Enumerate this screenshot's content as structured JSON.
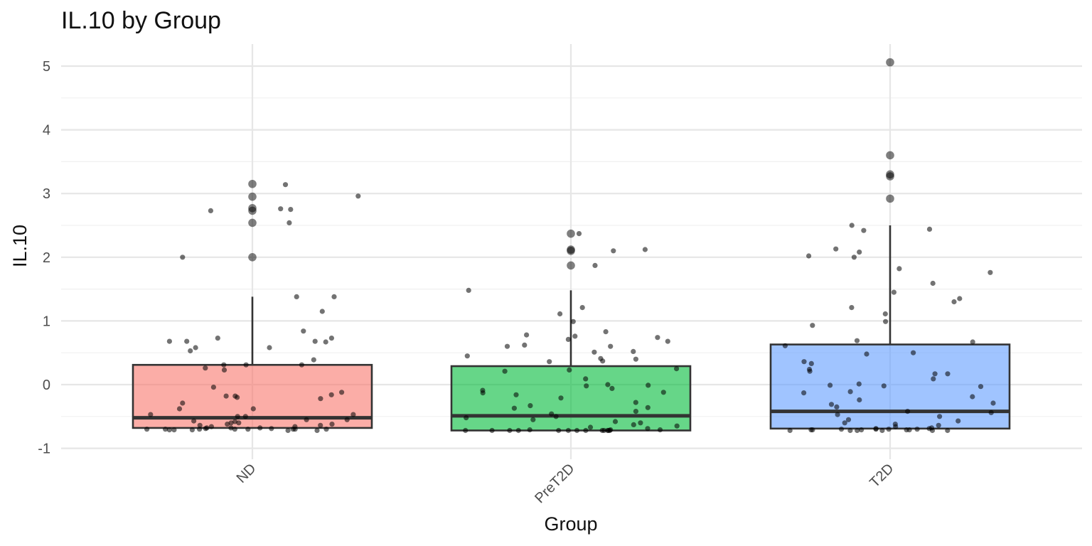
{
  "chart_data": {
    "type": "boxplot",
    "title": "IL.10 by Group",
    "xlabel": "Group",
    "ylabel": "IL.10",
    "categories": [
      "ND",
      "PreT2D",
      "T2D"
    ],
    "ylim": [
      -1.1,
      5.35
    ],
    "yticks": [
      -1,
      0,
      1,
      2,
      3,
      4,
      5
    ],
    "grid": true,
    "legend": "none",
    "colors": [
      "#F8766D",
      "#00BA38",
      "#619CFF"
    ],
    "boxes": [
      {
        "group": "ND",
        "lower": -0.68,
        "q1": -0.68,
        "median": -0.52,
        "q3": 0.31,
        "upper": 1.38
      },
      {
        "group": "PreT2D",
        "lower": -0.72,
        "q1": -0.72,
        "median": -0.49,
        "q3": 0.29,
        "upper": 1.48
      },
      {
        "group": "T2D",
        "lower": -0.69,
        "q1": -0.69,
        "median": -0.42,
        "q3": 0.63,
        "upper": 2.5
      }
    ],
    "outliers": [
      {
        "group": "ND",
        "values": [
          3.15,
          2.95,
          2.77,
          2.73,
          2.54,
          2.0
        ]
      },
      {
        "group": "PreT2D",
        "values": [
          2.37,
          2.12,
          2.1,
          1.87
        ]
      },
      {
        "group": "T2D",
        "values": [
          5.06,
          3.6,
          3.3,
          3.27,
          2.92
        ]
      }
    ],
    "points": [
      {
        "group": "ND",
        "values": [
          3.14,
          2.73,
          2.76,
          2.96,
          2.75,
          2.54,
          2.0,
          1.38,
          1.38,
          1.15,
          0.84,
          0.73,
          0.68,
          0.68,
          0.58,
          0.58,
          0.53,
          0.39,
          0.73,
          0.67,
          0.68,
          0.31,
          0.31,
          0.31,
          0.26,
          0.23,
          -0.12,
          -0.16,
          -0.18,
          -0.2,
          -0.22,
          -0.29,
          -0.38,
          -0.04,
          -0.18,
          -0.38,
          -0.47,
          -0.5,
          -0.55,
          -0.57,
          -0.6,
          -0.62,
          -0.64,
          -0.66,
          -0.68,
          -0.7,
          -0.7,
          -0.71,
          -0.69,
          -0.7,
          -0.7,
          -0.68,
          -0.66,
          -0.64,
          -0.62,
          -0.6,
          -0.58,
          -0.55,
          -0.5,
          -0.47,
          -0.7,
          -0.71,
          -0.72,
          -0.7,
          -0.68,
          -0.69,
          -0.7,
          -0.71,
          -0.72,
          -0.7
        ]
      },
      {
        "group": "PreT2D",
        "values": [
          2.37,
          2.12,
          1.87,
          2.1,
          1.48,
          1.21,
          1.11,
          0.99,
          0.83,
          0.78,
          0.71,
          0.68,
          0.6,
          0.76,
          0.74,
          0.51,
          0.45,
          0.41,
          0.37,
          0.36,
          0.4,
          0.6,
          0.62,
          0.52,
          0.25,
          0.23,
          0.21,
          0.09,
          0.0,
          -0.01,
          -0.02,
          -0.06,
          -0.09,
          -0.12,
          -0.13,
          -0.16,
          -0.21,
          -0.28,
          -0.33,
          -0.36,
          -0.37,
          -0.42,
          -0.46,
          -0.5,
          -0.52,
          -0.55,
          -0.58,
          -0.6,
          -0.63,
          -0.65,
          -0.67,
          -0.69,
          -0.71,
          -0.72,
          -0.72,
          -0.72,
          -0.72,
          -0.71,
          -0.72,
          -0.72,
          -0.72,
          -0.71,
          -0.72,
          -0.72,
          -0.72,
          -0.72,
          -0.72,
          -0.72
        ]
      },
      {
        "group": "T2D",
        "values": [
          2.5,
          2.44,
          2.08,
          2.42,
          2.13,
          2.0,
          2.02,
          1.82,
          1.76,
          1.59,
          1.45,
          1.35,
          1.3,
          1.21,
          1.11,
          0.99,
          0.93,
          0.67,
          0.69,
          0.61,
          0.5,
          0.48,
          0.36,
          0.33,
          0.24,
          0.21,
          0.17,
          0.17,
          0.09,
          0.01,
          -0.01,
          -0.02,
          -0.03,
          -0.11,
          -0.13,
          -0.19,
          -0.24,
          -0.29,
          -0.31,
          -0.35,
          -0.42,
          -0.44,
          -0.47,
          -0.5,
          -0.55,
          -0.57,
          -0.6,
          -0.62,
          -0.64,
          -0.66,
          -0.68,
          -0.69,
          -0.7,
          -0.71,
          -0.72,
          -0.72,
          -0.71,
          -0.7,
          -0.72,
          -0.71,
          -0.72,
          -0.7,
          -0.71,
          -0.72,
          -0.7,
          -0.69,
          -0.71,
          -0.72
        ]
      }
    ]
  }
}
